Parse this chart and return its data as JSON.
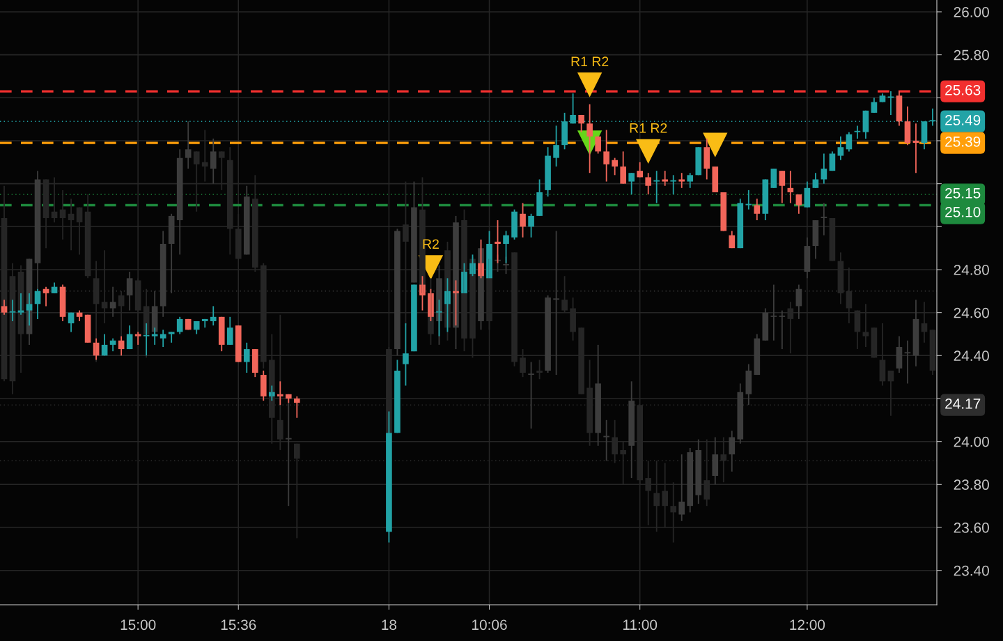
{
  "chart_data": {
    "type": "candlestick",
    "categories": [
      null,
      null,
      null,
      null,
      null,
      null,
      null,
      null,
      null,
      null,
      null,
      null,
      null,
      null,
      null,
      null,
      "15:00",
      null,
      null,
      null,
      null,
      null,
      null,
      null,
      null,
      null,
      null,
      null,
      "15:36",
      null,
      null,
      null,
      null,
      null,
      null,
      null,
      null,
      null,
      null,
      null,
      null,
      null,
      null,
      null,
      null,
      null,
      "18",
      null,
      null,
      null,
      null,
      null,
      null,
      null,
      null,
      null,
      null,
      null,
      "10:06",
      null,
      null,
      null,
      null,
      null,
      null,
      null,
      null,
      null,
      null,
      null,
      null,
      null,
      null,
      null,
      null,
      null,
      "11:00",
      null,
      null,
      null,
      null,
      null,
      null,
      null,
      null,
      null,
      null,
      null,
      null,
      null,
      null,
      null,
      null,
      null,
      null,
      null,
      "12:00",
      null,
      null,
      null,
      null,
      null,
      null,
      null,
      null,
      null,
      null,
      null,
      null,
      null,
      null,
      null
    ],
    "ylim": [
      23.24,
      26.055
    ],
    "yticks": [
      {
        "value": 23.4,
        "label": "23.40"
      },
      {
        "value": 23.6,
        "label": "23.60"
      },
      {
        "value": 23.8,
        "label": "23.80"
      },
      {
        "value": 24.0,
        "label": "24.00"
      },
      {
        "value": 24.2,
        "label": null
      },
      {
        "value": 24.4,
        "label": "24.40"
      },
      {
        "value": 24.6,
        "label": "24.60"
      },
      {
        "value": 24.8,
        "label": "24.80"
      },
      {
        "value": 25.0,
        "label": null
      },
      {
        "value": 25.2,
        "label": null
      },
      {
        "value": 25.4,
        "label": null
      },
      {
        "value": 25.6,
        "label": null
      },
      {
        "value": 25.8,
        "label": "25.80"
      },
      {
        "value": 26.0,
        "label": "26.00"
      }
    ],
    "grid": true,
    "marker": "triangle",
    "series": [
      {
        "colors": [
          "#262626",
          "#262626",
          "#262626",
          "#3d3d3d",
          "#3d3d3d",
          "#262626",
          "#262626",
          "#262626",
          "#262626",
          "#262626",
          "#262626",
          "#262626",
          "#262626",
          "#3d3d3d",
          "#262626",
          "#3d3d3d",
          "#262626",
          "#262626",
          "#3d3d3d",
          "#3d3d3d",
          "#3d3d3d",
          "#3d3d3d",
          "#3d3d3d",
          "#262626",
          "#262626",
          "#3d3d3d",
          "#262626",
          "#262626",
          "#262626",
          "#3d3d3d",
          "#262626",
          "#262626",
          "#262626",
          "#262626",
          "#3d3d3d",
          "#262626",
          null,
          null,
          null,
          null,
          null,
          null,
          null,
          null,
          null,
          null,
          "#262626",
          "#3d3d3d",
          "#262626",
          "#3d3d3d",
          "#262626",
          "#262626",
          "#3d3d3d",
          "#262626",
          "#3d3d3d",
          "#262626",
          "#262626",
          "#3d3d3d",
          "#262626",
          "#3d3d3d",
          "#3d3d3d",
          "#262626",
          "#262626",
          "#3d3d3d",
          "#262626",
          "#3d3d3d",
          "#3d3d3d",
          "#262626",
          "#262626",
          "#262626",
          "#262626",
          "#3d3d3d",
          "#3d3d3d",
          "#262626",
          "#262626",
          "#3d3d3d",
          "#262626",
          "#262626",
          "#262626",
          "#262626",
          "#262626",
          "#3d3d3d",
          "#3d3d3d",
          "#3d3d3d",
          "#262626",
          "#3d3d3d",
          "#262626",
          "#3d3d3d",
          "#3d3d3d",
          "#3d3d3d",
          "#3d3d3d",
          "#3d3d3d",
          "#3d3d3d",
          "#3d3d3d",
          "#262626",
          "#3d3d3d",
          "#3d3d3d",
          "#3d3d3d",
          "#3d3d3d",
          "#262626",
          "#262626",
          "#262626",
          "#262626",
          "#262626",
          "#262626",
          "#262626",
          "#262626",
          "#3d3d3d",
          "#3d3d3d",
          "#3d3d3d",
          "#262626",
          "#262626"
        ],
        "ohlc": [
          [
            25.04,
            25.19,
            24.28,
            24.29
          ],
          [
            24.77,
            24.83,
            24.22,
            24.28
          ],
          [
            24.79,
            24.82,
            24.32,
            24.5
          ],
          [
            24.5,
            24.85,
            24.45,
            24.85
          ],
          [
            24.83,
            25.26,
            24.71,
            25.22
          ],
          [
            25.22,
            25.22,
            24.9,
            25.04
          ],
          [
            25.07,
            25.23,
            25.02,
            25.04
          ],
          [
            25.08,
            25.17,
            24.94,
            25.04
          ],
          [
            25.06,
            25.13,
            24.89,
            25.03
          ],
          [
            25.09,
            25.09,
            24.87,
            25.02
          ],
          [
            25.07,
            25.15,
            24.76,
            24.77
          ],
          [
            24.76,
            24.84,
            24.37,
            24.64
          ],
          [
            24.65,
            24.89,
            24.55,
            24.62
          ],
          [
            24.62,
            24.72,
            24.58,
            24.65
          ],
          [
            24.68,
            24.7,
            24.48,
            24.63
          ],
          [
            24.68,
            24.79,
            24.61,
            24.76
          ],
          [
            24.75,
            24.76,
            24.46,
            24.61
          ],
          [
            24.63,
            24.71,
            24.39,
            24.5
          ],
          [
            24.51,
            24.7,
            24.5,
            24.63
          ],
          [
            24.63,
            24.98,
            24.58,
            24.92
          ],
          [
            24.92,
            25.06,
            24.69,
            25.05
          ],
          [
            25.03,
            25.36,
            24.87,
            25.32
          ],
          [
            25.32,
            25.49,
            25.27,
            25.36
          ],
          [
            25.35,
            25.35,
            25.07,
            25.29
          ],
          [
            25.3,
            25.45,
            25.21,
            25.28
          ],
          [
            25.27,
            25.41,
            25.2,
            25.35
          ],
          [
            25.35,
            25.35,
            25.17,
            25.32
          ],
          [
            25.31,
            25.37,
            24.87,
            24.99
          ],
          [
            24.99,
            25.06,
            24.85,
            24.85
          ],
          [
            24.87,
            25.19,
            24.87,
            25.14
          ],
          [
            25.13,
            25.24,
            24.79,
            24.81
          ],
          [
            24.82,
            24.83,
            24.34,
            24.37
          ],
          [
            24.38,
            24.5,
            23.99,
            24.11
          ],
          [
            24.1,
            24.59,
            23.96,
            24.01
          ],
          [
            24.01,
            24.2,
            23.7,
            24.01
          ],
          [
            23.99,
            23.99,
            23.55,
            23.92
          ],
          null,
          null,
          null,
          null,
          null,
          null,
          null,
          null,
          null,
          null,
          [
            24.43,
            24.44,
            24.04,
            24.04
          ],
          [
            24.43,
            24.99,
            24.4,
            24.98
          ],
          [
            25.01,
            25.21,
            24.54,
            24.93
          ],
          [
            24.74,
            25.21,
            24.74,
            25.09
          ],
          [
            25.08,
            25.23,
            24.69,
            24.69
          ],
          [
            24.69,
            24.76,
            24.45,
            24.5
          ],
          [
            24.56,
            24.82,
            24.45,
            24.76
          ],
          [
            24.89,
            24.93,
            24.47,
            24.53
          ],
          [
            24.53,
            25.05,
            24.43,
            25.02
          ],
          [
            25.03,
            25.08,
            24.42,
            24.48
          ],
          [
            24.85,
            24.86,
            24.39,
            24.48
          ],
          [
            24.56,
            24.94,
            24.52,
            24.9
          ],
          [
            24.85,
            24.85,
            24.52,
            24.56
          ],
          [
            24.84,
            24.87,
            24.79,
            24.84
          ],
          [
            24.82,
            24.86,
            24.78,
            24.82
          ],
          [
            24.88,
            24.88,
            24.35,
            24.37
          ],
          [
            24.39,
            24.43,
            24.3,
            24.32
          ],
          [
            24.31,
            24.37,
            24.06,
            24.31
          ],
          [
            24.33,
            24.38,
            24.29,
            24.32
          ],
          [
            24.33,
            24.68,
            24.32,
            24.67
          ],
          [
            24.66,
            24.98,
            24.31,
            24.66
          ],
          [
            24.66,
            24.77,
            24.6,
            24.61
          ],
          [
            24.62,
            24.67,
            24.47,
            24.51
          ],
          [
            24.53,
            24.53,
            24.22,
            24.22
          ],
          [
            24.25,
            24.38,
            23.98,
            24.04
          ],
          [
            24.04,
            24.45,
            23.98,
            24.27
          ],
          [
            24.02,
            24.1,
            23.91,
            24.02
          ],
          [
            24.02,
            24.1,
            23.9,
            23.94
          ],
          [
            23.96,
            24.0,
            23.8,
            23.94
          ],
          [
            23.98,
            24.28,
            23.83,
            24.19
          ],
          [
            24.17,
            24.17,
            23.8,
            23.82
          ],
          [
            23.83,
            23.91,
            23.61,
            23.77
          ],
          [
            23.76,
            23.91,
            23.58,
            23.7
          ],
          [
            23.77,
            23.9,
            23.6,
            23.7
          ],
          [
            23.7,
            23.81,
            23.53,
            23.67
          ],
          [
            23.66,
            23.94,
            23.63,
            23.72
          ],
          [
            23.7,
            23.97,
            23.67,
            23.95
          ],
          [
            23.75,
            24.01,
            23.71,
            23.96
          ],
          [
            23.82,
            24.01,
            23.7,
            23.73
          ],
          [
            23.84,
            24.02,
            23.8,
            23.94
          ],
          [
            23.94,
            24.02,
            23.81,
            23.91
          ],
          [
            23.94,
            24.05,
            23.86,
            24.02
          ],
          [
            24.01,
            24.27,
            23.99,
            24.23
          ],
          [
            24.22,
            24.36,
            24.17,
            24.33
          ],
          [
            24.31,
            24.5,
            24.31,
            24.48
          ],
          [
            24.47,
            24.62,
            24.47,
            24.6
          ],
          [
            24.58,
            24.73,
            24.47,
            24.58
          ],
          [
            24.58,
            24.61,
            24.43,
            24.58
          ],
          [
            24.62,
            24.65,
            24.41,
            24.57
          ],
          [
            24.63,
            24.73,
            24.57,
            24.71
          ],
          [
            24.79,
            24.95,
            24.76,
            24.91
          ],
          [
            24.91,
            25.03,
            24.85,
            25.03
          ],
          [
            25.04,
            25.11,
            24.96,
            25.04
          ],
          [
            25.04,
            25.04,
            24.84,
            24.84
          ],
          [
            24.84,
            24.88,
            24.64,
            24.69
          ],
          [
            24.7,
            24.81,
            24.55,
            24.62
          ],
          [
            24.61,
            24.61,
            24.43,
            24.51
          ],
          [
            24.51,
            24.64,
            24.44,
            24.49
          ],
          [
            24.53,
            24.53,
            24.39,
            24.39
          ],
          [
            24.38,
            24.55,
            24.26,
            24.28
          ],
          [
            24.33,
            24.33,
            24.12,
            24.28
          ],
          [
            24.34,
            24.49,
            24.32,
            24.44
          ],
          [
            24.41,
            24.47,
            24.27,
            24.41
          ],
          [
            24.4,
            24.66,
            24.35,
            24.57
          ],
          [
            24.55,
            24.65,
            24.46,
            24.51
          ],
          [
            24.52,
            24.52,
            24.31,
            24.33
          ]
        ]
      },
      {
        "colors": [
          "#f2665a",
          "#22a3a6",
          "#22a3a6",
          "#22a3a6",
          "#22a3a6",
          "#f2665a",
          "#22a3a6",
          "#f2665a",
          "#22a3a6",
          "#f2665a",
          "#f2665a",
          "#f2665a",
          "#22a3a6",
          "#22a3a6",
          "#f2665a",
          "#22a3a6",
          "#f2665a",
          "#22a3a6",
          "#22a3a6",
          "#22a3a6",
          "#22a3a6",
          "#22a3a6",
          "#f2665a",
          "#22a3a6",
          "#22a3a6",
          "#22a3a6",
          "#f2665a",
          "#22a3a6",
          "#f2665a",
          "#22a3a6",
          "#f2665a",
          "#f2665a",
          "#22a3a6",
          "#f2665a",
          "#f2665a",
          "#f2665a",
          null,
          null,
          null,
          null,
          null,
          null,
          null,
          null,
          null,
          null,
          "#22a3a6",
          "#22a3a6",
          "#22a3a6",
          "#22a3a6",
          "#f2665a",
          "#f2665a",
          "#22a3a6",
          "#22a3a6",
          "#f2665a",
          "#22a3a6",
          "#22a3a6",
          "#f2665a",
          "#22a3a6",
          "#f2665a",
          "#22a3a6",
          "#22a3a6",
          "#f2665a",
          "#22a3a6",
          "#22a3a6",
          "#22a3a6",
          "#22a3a6",
          "#22a3a6",
          "#22a3a6",
          "#f2665a",
          "#f2665a",
          "#f2665a",
          "#f2665a",
          "#f2665a",
          "#f2665a",
          "#22a3a6",
          "#f2665a",
          "#f2665a",
          "#22a3a6",
          "#f2665a",
          "#22a3a6",
          "#f2665a",
          "#22a3a6",
          "#22a3a6",
          "#f2665a",
          "#f2665a",
          "#f2665a",
          "#f2665a",
          "#22a3a6",
          "#22a3a6",
          "#f2665a",
          "#22a3a6",
          "#22a3a6",
          "#f2665a",
          "#f2665a",
          "#f2665a",
          "#22a3a6",
          "#22a3a6",
          "#22a3a6",
          "#22a3a6",
          "#22a3a6",
          "#22a3a6",
          "#22a3a6",
          "#22a3a6",
          "#22a3a6",
          "#22a3a6",
          "#22a3a6",
          "#f2665a",
          "#f2665a",
          "#f2665a",
          "#22a3a6",
          "#22a3a6"
        ],
        "ohlc": [
          [
            24.63,
            24.66,
            24.59,
            24.6
          ],
          [
            24.6,
            24.66,
            24.56,
            24.6
          ],
          [
            24.6,
            24.69,
            24.59,
            24.61
          ],
          [
            24.61,
            24.69,
            24.54,
            24.64
          ],
          [
            24.64,
            24.71,
            24.57,
            24.7
          ],
          [
            24.71,
            24.72,
            24.63,
            24.69
          ],
          [
            24.69,
            24.74,
            24.69,
            24.72
          ],
          [
            24.72,
            24.73,
            24.56,
            24.58
          ],
          [
            24.55,
            24.6,
            24.51,
            24.6
          ],
          [
            24.6,
            24.61,
            24.56,
            24.58
          ],
          [
            24.59,
            24.59,
            24.46,
            24.46
          ],
          [
            24.46,
            24.48,
            24.38,
            24.4
          ],
          [
            24.4,
            24.5,
            24.4,
            24.45
          ],
          [
            24.45,
            24.48,
            24.42,
            24.47
          ],
          [
            24.47,
            24.49,
            24.4,
            24.43
          ],
          [
            24.43,
            24.54,
            24.43,
            24.5
          ],
          [
            24.5,
            24.51,
            24.45,
            24.49
          ],
          [
            24.49,
            24.55,
            24.4,
            24.49
          ],
          [
            24.49,
            24.53,
            24.45,
            24.5
          ],
          [
            24.48,
            24.52,
            24.44,
            24.5
          ],
          [
            24.5,
            24.51,
            24.46,
            24.51
          ],
          [
            24.51,
            24.58,
            24.5,
            24.57
          ],
          [
            24.57,
            24.57,
            24.52,
            24.52
          ],
          [
            24.52,
            24.56,
            24.5,
            24.56
          ],
          [
            24.56,
            24.57,
            24.53,
            24.57
          ],
          [
            24.56,
            24.63,
            24.54,
            24.58
          ],
          [
            24.58,
            24.58,
            24.42,
            24.45
          ],
          [
            24.45,
            24.58,
            24.45,
            24.53
          ],
          [
            24.54,
            24.54,
            24.37,
            24.37
          ],
          [
            24.37,
            24.46,
            24.32,
            24.43
          ],
          [
            24.43,
            24.43,
            24.3,
            24.32
          ],
          [
            24.31,
            24.33,
            24.19,
            24.21
          ],
          [
            24.21,
            24.26,
            24.19,
            24.23
          ],
          [
            24.22,
            24.28,
            24.17,
            24.21
          ],
          [
            24.22,
            24.22,
            24.18,
            24.2
          ],
          [
            24.2,
            24.21,
            24.11,
            24.18
          ],
          null,
          null,
          null,
          null,
          null,
          null,
          null,
          null,
          null,
          null,
          [
            23.58,
            24.14,
            23.53,
            24.04
          ],
          [
            24.04,
            24.38,
            24.04,
            24.33
          ],
          [
            24.36,
            24.55,
            24.26,
            24.41
          ],
          [
            24.42,
            24.73,
            24.42,
            24.73
          ],
          [
            24.73,
            24.77,
            24.61,
            24.68
          ],
          [
            24.69,
            24.71,
            24.56,
            24.58
          ],
          [
            24.6,
            24.66,
            24.49,
            24.6
          ],
          [
            24.64,
            24.76,
            24.51,
            24.7
          ],
          [
            24.7,
            24.75,
            24.54,
            24.69
          ],
          [
            24.69,
            24.83,
            24.69,
            24.79
          ],
          [
            24.78,
            24.87,
            24.77,
            24.83
          ],
          [
            24.83,
            24.94,
            24.76,
            24.77
          ],
          [
            24.76,
            24.98,
            24.76,
            24.92
          ],
          [
            24.93,
            25.03,
            24.83,
            24.92
          ],
          [
            24.92,
            24.98,
            24.83,
            24.96
          ],
          [
            24.95,
            25.08,
            24.94,
            25.07
          ],
          [
            25.06,
            25.11,
            24.95,
            25.0
          ],
          [
            25.0,
            25.06,
            24.95,
            25.05
          ],
          [
            25.05,
            25.22,
            25.05,
            25.16
          ],
          [
            25.17,
            25.37,
            25.14,
            25.33
          ],
          [
            25.32,
            25.47,
            25.28,
            25.38
          ],
          [
            25.38,
            25.53,
            25.36,
            25.49
          ],
          [
            25.48,
            25.62,
            25.48,
            25.52
          ],
          [
            25.52,
            25.52,
            25.44,
            25.48
          ],
          [
            25.48,
            25.57,
            25.25,
            25.42
          ],
          [
            25.42,
            25.42,
            25.34,
            25.35
          ],
          [
            25.35,
            25.45,
            25.21,
            25.29
          ],
          [
            25.31,
            25.32,
            25.24,
            25.28
          ],
          [
            25.28,
            25.35,
            25.2,
            25.2
          ],
          [
            25.21,
            25.25,
            25.15,
            25.25
          ],
          [
            25.26,
            25.3,
            25.23,
            25.23
          ],
          [
            25.23,
            25.25,
            25.15,
            25.19
          ],
          [
            25.21,
            25.26,
            25.11,
            25.21
          ],
          [
            25.22,
            25.26,
            25.19,
            25.21
          ],
          [
            25.21,
            25.24,
            25.15,
            25.21
          ],
          [
            25.22,
            25.25,
            25.18,
            25.21
          ],
          [
            25.21,
            25.25,
            25.18,
            25.24
          ],
          [
            25.24,
            25.37,
            25.24,
            25.37
          ],
          [
            25.37,
            25.41,
            25.22,
            25.27
          ],
          [
            25.28,
            25.28,
            25.16,
            25.16
          ],
          [
            25.16,
            25.16,
            24.98,
            24.98
          ],
          [
            24.96,
            24.98,
            24.9,
            24.9
          ],
          [
            24.9,
            25.13,
            24.9,
            25.11
          ],
          [
            25.1,
            25.17,
            25.08,
            25.1
          ],
          [
            25.1,
            25.13,
            25.03,
            25.06
          ],
          [
            25.06,
            25.22,
            25.03,
            25.22
          ],
          [
            25.18,
            25.27,
            25.18,
            25.27
          ],
          [
            25.26,
            25.26,
            25.11,
            25.19
          ],
          [
            25.18,
            25.26,
            25.11,
            25.16
          ],
          [
            25.15,
            25.15,
            25.06,
            25.1
          ],
          [
            25.09,
            25.21,
            25.09,
            25.18
          ],
          [
            25.18,
            25.25,
            25.18,
            25.22
          ],
          [
            25.22,
            25.34,
            25.2,
            25.27
          ],
          [
            25.26,
            25.35,
            25.26,
            25.34
          ],
          [
            25.33,
            25.42,
            25.31,
            25.37
          ],
          [
            25.36,
            25.44,
            25.35,
            25.43
          ],
          [
            25.44,
            25.47,
            25.41,
            25.44
          ],
          [
            25.44,
            25.54,
            25.41,
            25.54
          ],
          [
            25.53,
            25.6,
            25.53,
            25.58
          ],
          [
            25.58,
            25.62,
            25.58,
            25.61
          ],
          [
            25.6,
            25.63,
            25.52,
            25.6
          ],
          [
            25.61,
            25.63,
            25.47,
            25.49
          ],
          [
            25.49,
            25.56,
            25.38,
            25.39
          ],
          [
            25.4,
            25.48,
            25.25,
            25.39
          ],
          [
            25.39,
            25.49,
            25.36,
            25.49
          ],
          [
            25.49,
            25.55,
            25.47,
            25.49
          ]
        ]
      },
      {
        "type": "scatter",
        "color": "#f9bc15",
        "values": [
          null,
          null,
          null,
          null,
          null,
          null,
          null,
          null,
          null,
          null,
          null,
          null,
          null,
          null,
          null,
          null,
          null,
          null,
          null,
          null,
          null,
          null,
          null,
          null,
          null,
          null,
          null,
          null,
          null,
          null,
          null,
          null,
          null,
          null,
          null,
          null,
          null,
          null,
          null,
          null,
          null,
          null,
          null,
          null,
          null,
          null,
          null,
          null,
          null,
          null,
          null,
          24.81,
          null,
          null,
          null,
          null,
          null,
          null,
          null,
          null,
          null,
          null,
          null,
          null,
          null,
          null,
          null,
          null,
          null,
          null,
          25.66,
          null,
          null,
          null,
          null,
          null,
          null,
          25.35,
          null,
          null,
          null,
          null,
          null,
          null,
          null,
          25.38,
          null,
          null,
          null,
          null,
          null,
          null,
          null,
          null,
          null,
          null,
          null,
          null,
          null,
          null,
          null,
          null,
          null,
          null,
          null,
          null,
          null,
          null,
          null,
          null,
          null,
          null
        ],
        "value_labels": [
          null,
          null,
          null,
          null,
          null,
          null,
          null,
          null,
          null,
          null,
          null,
          null,
          null,
          null,
          null,
          null,
          null,
          null,
          null,
          null,
          null,
          null,
          null,
          null,
          null,
          null,
          null,
          null,
          null,
          null,
          null,
          null,
          null,
          null,
          null,
          null,
          null,
          null,
          null,
          null,
          null,
          null,
          null,
          null,
          null,
          null,
          null,
          null,
          null,
          null,
          null,
          "R2",
          null,
          null,
          null,
          null,
          null,
          null,
          null,
          null,
          null,
          null,
          null,
          null,
          null,
          null,
          null,
          null,
          null,
          null,
          "R1 R2",
          null,
          null,
          null,
          null,
          null,
          null,
          "R1 R2",
          null,
          null,
          null,
          null,
          null,
          null,
          null,
          null,
          null,
          null,
          null,
          null,
          null,
          null,
          null,
          null,
          null,
          null,
          null,
          null,
          null,
          null,
          null,
          null,
          null,
          null,
          null,
          null,
          null,
          null,
          null,
          null,
          null,
          null
        ]
      },
      {
        "type": "scatter",
        "color": "#66d61a",
        "values": [
          null,
          null,
          null,
          null,
          null,
          null,
          null,
          null,
          null,
          null,
          null,
          null,
          null,
          null,
          null,
          null,
          null,
          null,
          null,
          null,
          null,
          null,
          null,
          null,
          null,
          null,
          null,
          null,
          null,
          null,
          null,
          null,
          null,
          null,
          null,
          null,
          null,
          null,
          null,
          null,
          null,
          null,
          null,
          null,
          null,
          null,
          null,
          null,
          null,
          null,
          null,
          null,
          null,
          null,
          null,
          null,
          null,
          null,
          null,
          null,
          null,
          null,
          null,
          null,
          null,
          null,
          null,
          null,
          null,
          null,
          25.39,
          null,
          null,
          null,
          null,
          null,
          null,
          null,
          null,
          null,
          null,
          null,
          null,
          null,
          null,
          null,
          null,
          null,
          null,
          null,
          null,
          null,
          null,
          null,
          null,
          null,
          null,
          null,
          null,
          null,
          null,
          null,
          null,
          null,
          null,
          null,
          null,
          null,
          null,
          null,
          null,
          null
        ]
      }
    ],
    "ref_lines": [
      {
        "axis": "y",
        "value": 25.63,
        "label": "25.63",
        "color": "#f2302f",
        "line_style": "dashed"
      },
      {
        "axis": "y",
        "value": 25.39,
        "label": "25.39",
        "color": "#ff9f0a",
        "line_style": "dashed"
      },
      {
        "axis": "y",
        "value": 25.1,
        "label": "25.10",
        "color": "#1e8a3e",
        "line_style": "dashed"
      },
      {
        "axis": "y",
        "value": 25.15,
        "label": "25.15",
        "color": "#1e8a3e",
        "line_style": "dotted"
      },
      {
        "axis": "y",
        "value": 24.7,
        "color": "#3a3a3a",
        "line_style": "dotted"
      },
      {
        "axis": "y",
        "value": 23.91,
        "color": "#3a3a3a",
        "line_style": "dotted"
      },
      {
        "axis": "y",
        "value": 25.49,
        "label": "25.49",
        "color": "#22a3a6",
        "line_style": "dotted"
      },
      {
        "axis": "y",
        "value": 24.17,
        "label": "24.17",
        "color": "#2e2e2e",
        "line_style": "dotted"
      }
    ]
  }
}
